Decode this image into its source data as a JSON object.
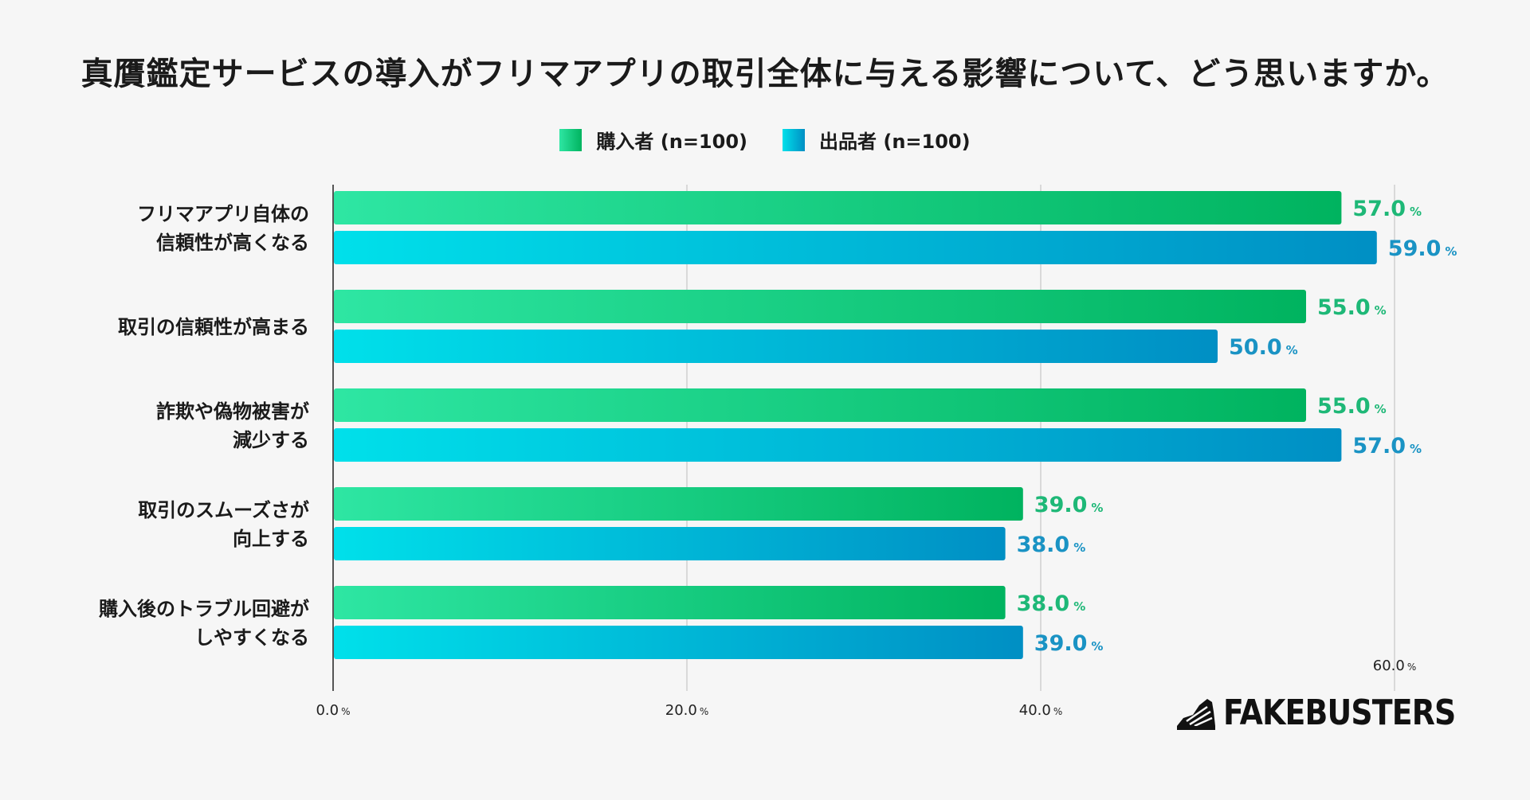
{
  "title": "真贋鑑定サービスの導入がフリマアプリの取引全体に与える影響について、どう思いますか。",
  "legend": [
    {
      "label": "購入者 (n=100)",
      "color": "#00b35f"
    },
    {
      "label": "出品者 (n=100)",
      "color": "#0091c6"
    }
  ],
  "brand": {
    "name": "FAKEBUSTERS"
  },
  "colors": {
    "buyer_start": "#2ee6a3",
    "buyer_end": "#00b35f",
    "seller_start": "#00e0ea",
    "seller_end": "#008fc4",
    "buyer_label": "#1eb877",
    "seller_label": "#1a93c4"
  },
  "chart_data": {
    "type": "bar",
    "orientation": "horizontal",
    "title": "真贋鑑定サービスの導入がフリマアプリの取引全体に与える影響について、どう思いますか。",
    "categories": [
      [
        "フリマアプリ自体の",
        "信頼性が高くなる"
      ],
      [
        "取引の信頼性が高まる"
      ],
      [
        "詐欺や偽物被害が",
        "減少する"
      ],
      [
        "取引のスムーズさが",
        "向上する"
      ],
      [
        "購入後のトラブル回避が",
        "しやすくなる"
      ]
    ],
    "series": [
      {
        "name": "購入者 (n=100)",
        "values": [
          57.0,
          55.0,
          55.0,
          39.0,
          38.0
        ]
      },
      {
        "name": "出品者 (n=100)",
        "values": [
          59.0,
          50.0,
          57.0,
          38.0,
          39.0
        ]
      }
    ],
    "xlim": [
      0,
      60
    ],
    "ticks": [
      {
        "value": 0,
        "label": "0.0"
      },
      {
        "value": 20,
        "label": "20.0"
      },
      {
        "value": 40,
        "label": "40.0"
      },
      {
        "value": 60,
        "label": "60.0"
      }
    ],
    "unit": "%",
    "grid": true,
    "legend_position": "top-center"
  }
}
